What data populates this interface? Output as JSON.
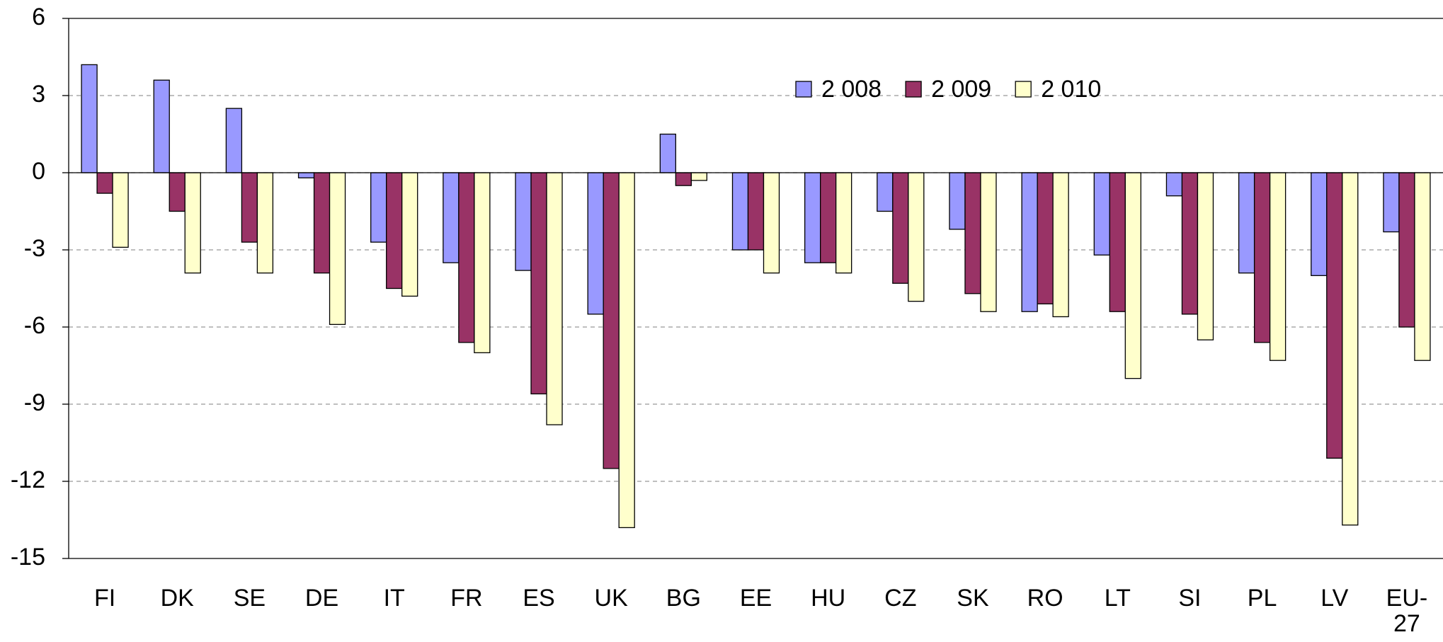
{
  "chart_data": {
    "type": "bar",
    "categories": [
      "FI",
      "DK",
      "SE",
      "DE",
      "IT",
      "FR",
      "ES",
      "UK",
      "BG",
      "EE",
      "HU",
      "CZ",
      "SK",
      "RO",
      "LT",
      "SI",
      "PL",
      "LV",
      "EU-27"
    ],
    "series": [
      {
        "name": "2 008",
        "color": "#9999ff",
        "values": [
          4.2,
          3.6,
          2.5,
          -0.2,
          -2.7,
          -3.5,
          -3.8,
          -5.5,
          1.5,
          -3.0,
          -3.5,
          -1.5,
          -2.2,
          -5.4,
          -3.2,
          -0.9,
          -3.9,
          -4.0,
          -2.3
        ]
      },
      {
        "name": "2 009",
        "color": "#993366",
        "values": [
          -0.8,
          -1.5,
          -2.7,
          -3.9,
          -4.5,
          -6.6,
          -8.6,
          -11.5,
          -0.5,
          -3.0,
          -3.5,
          -4.3,
          -4.7,
          -5.1,
          -5.4,
          -5.5,
          -6.6,
          -11.1,
          -6.0
        ]
      },
      {
        "name": "2 010",
        "color": "#ffffcc",
        "values": [
          -2.9,
          -3.9,
          -3.9,
          -5.9,
          -4.8,
          -7.0,
          -9.8,
          -13.8,
          -0.3,
          -3.9,
          -3.9,
          -5.0,
          -5.4,
          -5.6,
          -8.0,
          -6.5,
          -7.3,
          -13.7,
          -7.3
        ]
      }
    ],
    "ylim": [
      -15,
      6
    ],
    "yticks": [
      -15,
      -12,
      -9,
      -6,
      -3,
      0,
      3,
      6
    ],
    "grid": true,
    "legend": "top"
  }
}
